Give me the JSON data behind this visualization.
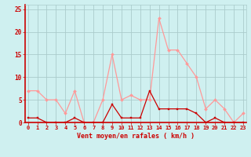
{
  "x": [
    0,
    1,
    2,
    3,
    4,
    5,
    6,
    7,
    8,
    9,
    10,
    11,
    12,
    13,
    14,
    15,
    16,
    17,
    18,
    19,
    20,
    21,
    22,
    23
  ],
  "vent_moyen": [
    1,
    1,
    0,
    0,
    0,
    1,
    0,
    0,
    0,
    4,
    1,
    1,
    1,
    7,
    3,
    3,
    3,
    3,
    2,
    0,
    1,
    0,
    0,
    0
  ],
  "rafales": [
    7,
    7,
    5,
    5,
    2,
    7,
    0,
    0,
    5,
    15,
    5,
    6,
    5,
    5,
    23,
    16,
    16,
    13,
    10,
    3,
    5,
    3,
    0,
    2
  ],
  "color_moyen": "#cc0000",
  "color_rafales": "#ff9999",
  "bg_color": "#cff0f0",
  "grid_color": "#aacccc",
  "xlabel": "Vent moyen/en rafales ( km/h )",
  "ylim": [
    0,
    26
  ],
  "xlim": [
    -0.3,
    23.3
  ],
  "yticks": [
    0,
    5,
    10,
    15,
    20,
    25
  ],
  "xticks": [
    0,
    1,
    2,
    3,
    4,
    5,
    6,
    7,
    8,
    9,
    10,
    11,
    12,
    13,
    14,
    15,
    16,
    17,
    18,
    19,
    20,
    21,
    22,
    23
  ],
  "tick_fontsize": 5.0,
  "xlabel_fontsize": 6.0,
  "linewidth": 0.9,
  "markersize": 2.0
}
